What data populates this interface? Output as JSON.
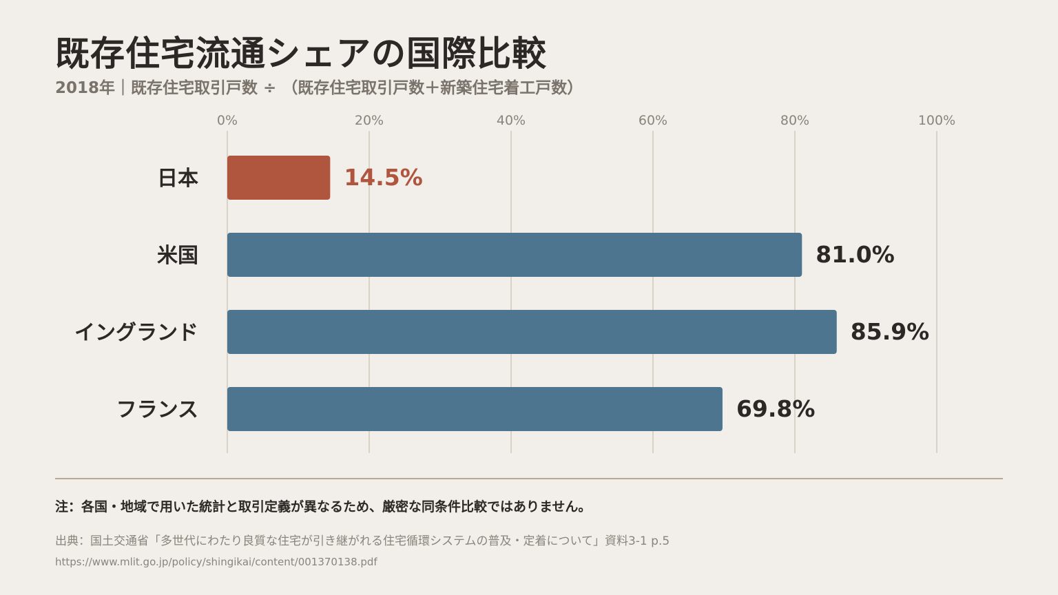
{
  "header": {
    "title": "既存住宅流通シェアの国際比較",
    "subtitle": "2018年｜既存住宅取引戸数 ÷ （既存住宅取引戸数＋新築住宅着工戸数）"
  },
  "chart_data": {
    "type": "bar",
    "orientation": "horizontal",
    "categories": [
      "日本",
      "米国",
      "イングランド",
      "フランス"
    ],
    "values": [
      14.5,
      81.0,
      85.9,
      69.8
    ],
    "value_labels": [
      "14.5%",
      "81.0%",
      "85.9%",
      "69.8%"
    ],
    "tick_labels": [
      "0%",
      "20%",
      "40%",
      "60%",
      "80%",
      "100%"
    ],
    "xlim": [
      0,
      100
    ],
    "grid": true,
    "legend": "none",
    "highlight_index": 0
  },
  "colors": {
    "highlight": "#b0563f",
    "default": "#4e7590",
    "grid": "#d9d2c7",
    "value_text": "#2b2825"
  },
  "footer": {
    "note": "注：各国・地域で用いた統計と取引定義が異なるため、厳密な同条件比較ではありません。",
    "source": "出典：国土交通省「多世代にわたり良質な住宅が引き継がれる住宅循環システムの普及・定着について」資料3-1 p.5",
    "url": "https://www.mlit.go.jp/policy/shingikai/content/001370138.pdf"
  }
}
